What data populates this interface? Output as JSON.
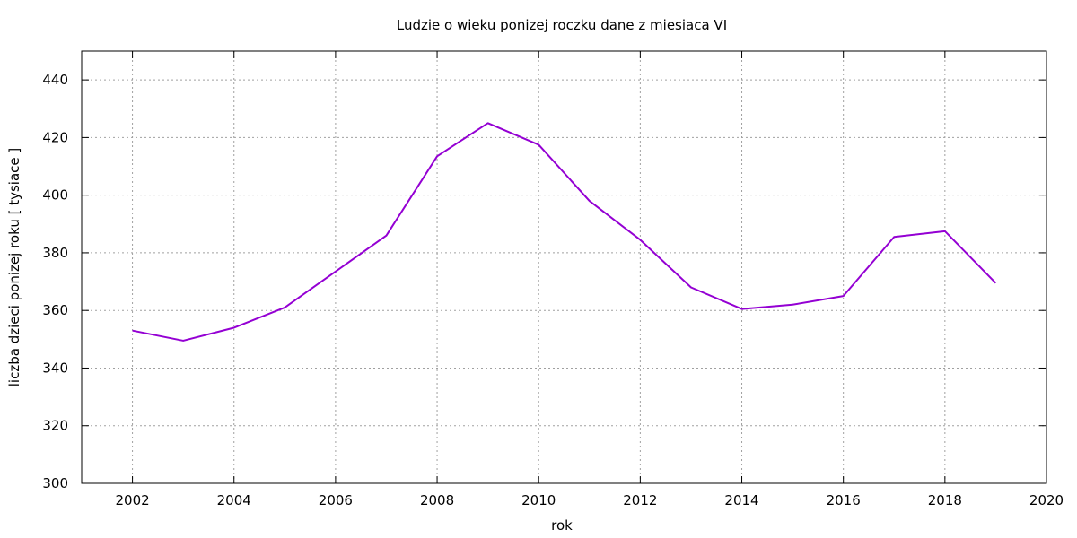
{
  "chart_data": {
    "type": "line",
    "title": "Ludzie o wieku ponizej roczku dane z miesiaca VI",
    "xlabel": "rok",
    "ylabel": "liczba dzieci ponizej roku [ tysiace ]",
    "xlim": [
      2001,
      2020
    ],
    "ylim": [
      300,
      450
    ],
    "xticks": [
      2002,
      2004,
      2006,
      2008,
      2010,
      2012,
      2014,
      2016,
      2018,
      2020
    ],
    "yticks": [
      300,
      320,
      340,
      360,
      380,
      400,
      420,
      440
    ],
    "grid": true,
    "legend": "none",
    "series": [
      {
        "color": "#9400d3",
        "x": [
          2002,
          2003,
          2004,
          2005,
          2006,
          2007,
          2008,
          2009,
          2010,
          2011,
          2012,
          2013,
          2014,
          2015,
          2016,
          2017,
          2018,
          2019
        ],
        "values": [
          353,
          349.5,
          354,
          361,
          373.5,
          386,
          413.5,
          425,
          417.5,
          398,
          384.5,
          368,
          360.5,
          362,
          365,
          385.5,
          387.5,
          369.5
        ]
      }
    ]
  }
}
